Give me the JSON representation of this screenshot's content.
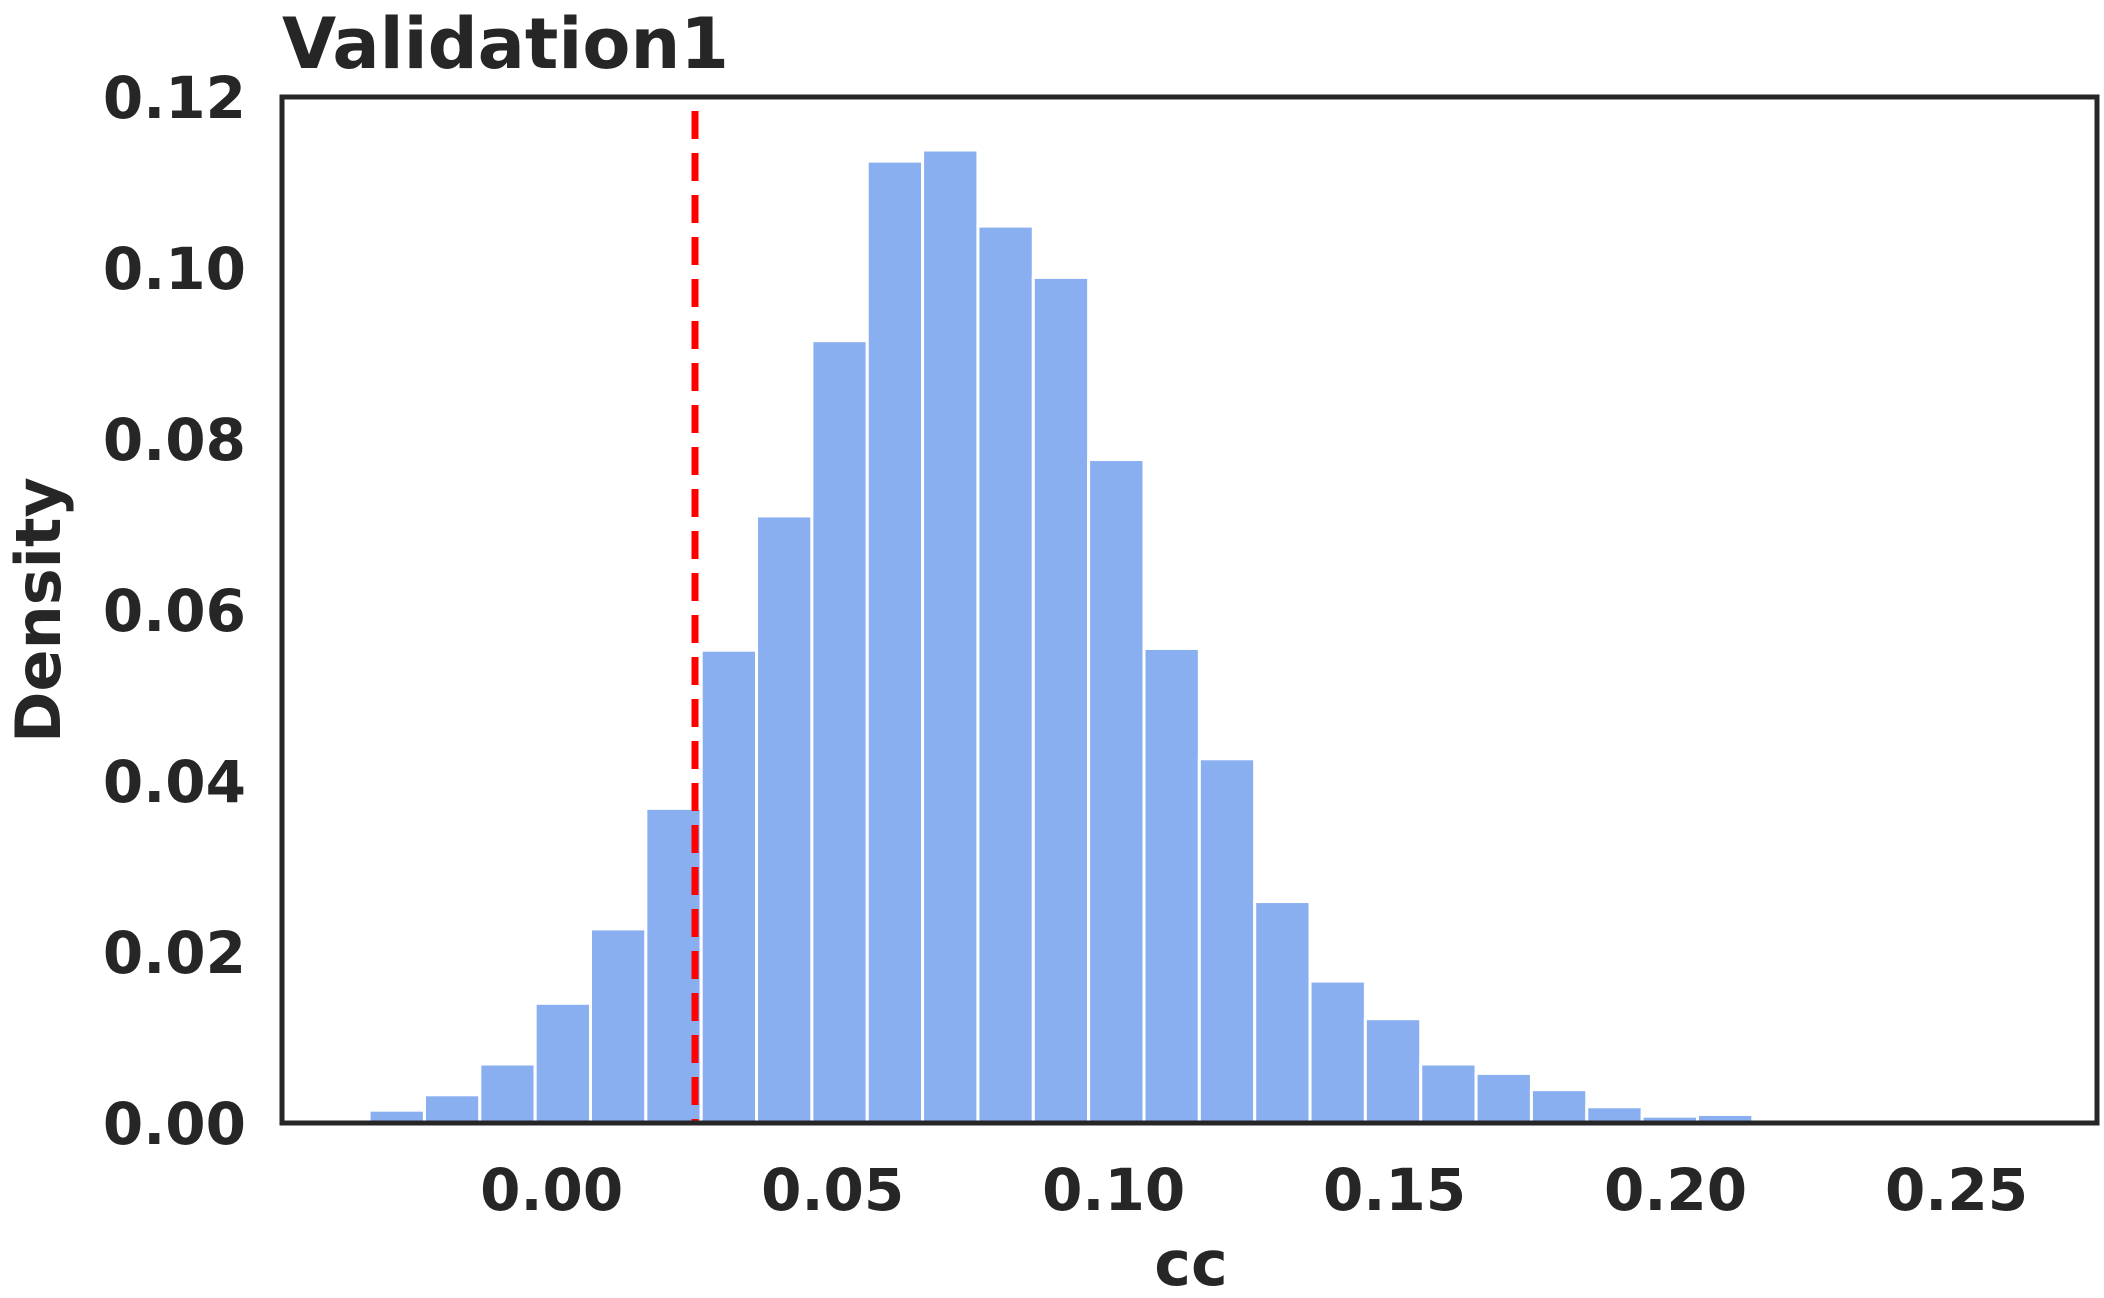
{
  "chart_data": {
    "type": "bar",
    "title": "Validation1",
    "xlabel": "cc",
    "ylabel": "Density",
    "xlim": [
      -0.048,
      0.275
    ],
    "ylim": [
      0,
      0.12
    ],
    "xticks": [
      "0.00",
      "0.05",
      "0.10",
      "0.15",
      "0.20",
      "0.25"
    ],
    "yticks": [
      "0.00",
      "0.02",
      "0.04",
      "0.06",
      "0.08",
      "0.10",
      "0.12"
    ],
    "grid": false,
    "bin_width": 0.00985,
    "bins": [
      {
        "x0": -0.0325,
        "density": 0.0015
      },
      {
        "x0": -0.02265,
        "density": 0.0033
      },
      {
        "x0": -0.0128,
        "density": 0.0069
      },
      {
        "x0": -0.00295,
        "density": 0.014
      },
      {
        "x0": 0.0069,
        "density": 0.0227
      },
      {
        "x0": 0.01675,
        "density": 0.0368
      },
      {
        "x0": 0.0266,
        "density": 0.0553
      },
      {
        "x0": 0.03645,
        "density": 0.071
      },
      {
        "x0": 0.0463,
        "density": 0.0915
      },
      {
        "x0": 0.05615,
        "density": 0.1125
      },
      {
        "x0": 0.066,
        "density": 0.1138
      },
      {
        "x0": 0.07585,
        "density": 0.1049
      },
      {
        "x0": 0.0857,
        "density": 0.0989
      },
      {
        "x0": 0.09555,
        "density": 0.0776
      },
      {
        "x0": 0.1054,
        "density": 0.0555
      },
      {
        "x0": 0.11525,
        "density": 0.0426
      },
      {
        "x0": 0.1251,
        "density": 0.0259
      },
      {
        "x0": 0.13495,
        "density": 0.0166
      },
      {
        "x0": 0.1448,
        "density": 0.0122
      },
      {
        "x0": 0.15465,
        "density": 0.0069
      },
      {
        "x0": 0.1645,
        "density": 0.0058
      },
      {
        "x0": 0.17435,
        "density": 0.0039
      },
      {
        "x0": 0.1842,
        "density": 0.0019
      },
      {
        "x0": 0.19405,
        "density": 0.0008
      },
      {
        "x0": 0.2039,
        "density": 0.001
      }
    ],
    "reference_line": {
      "x": 0.0255,
      "style": "dashed",
      "color": "#ff0000"
    },
    "bar_color": "#8aaff0"
  }
}
